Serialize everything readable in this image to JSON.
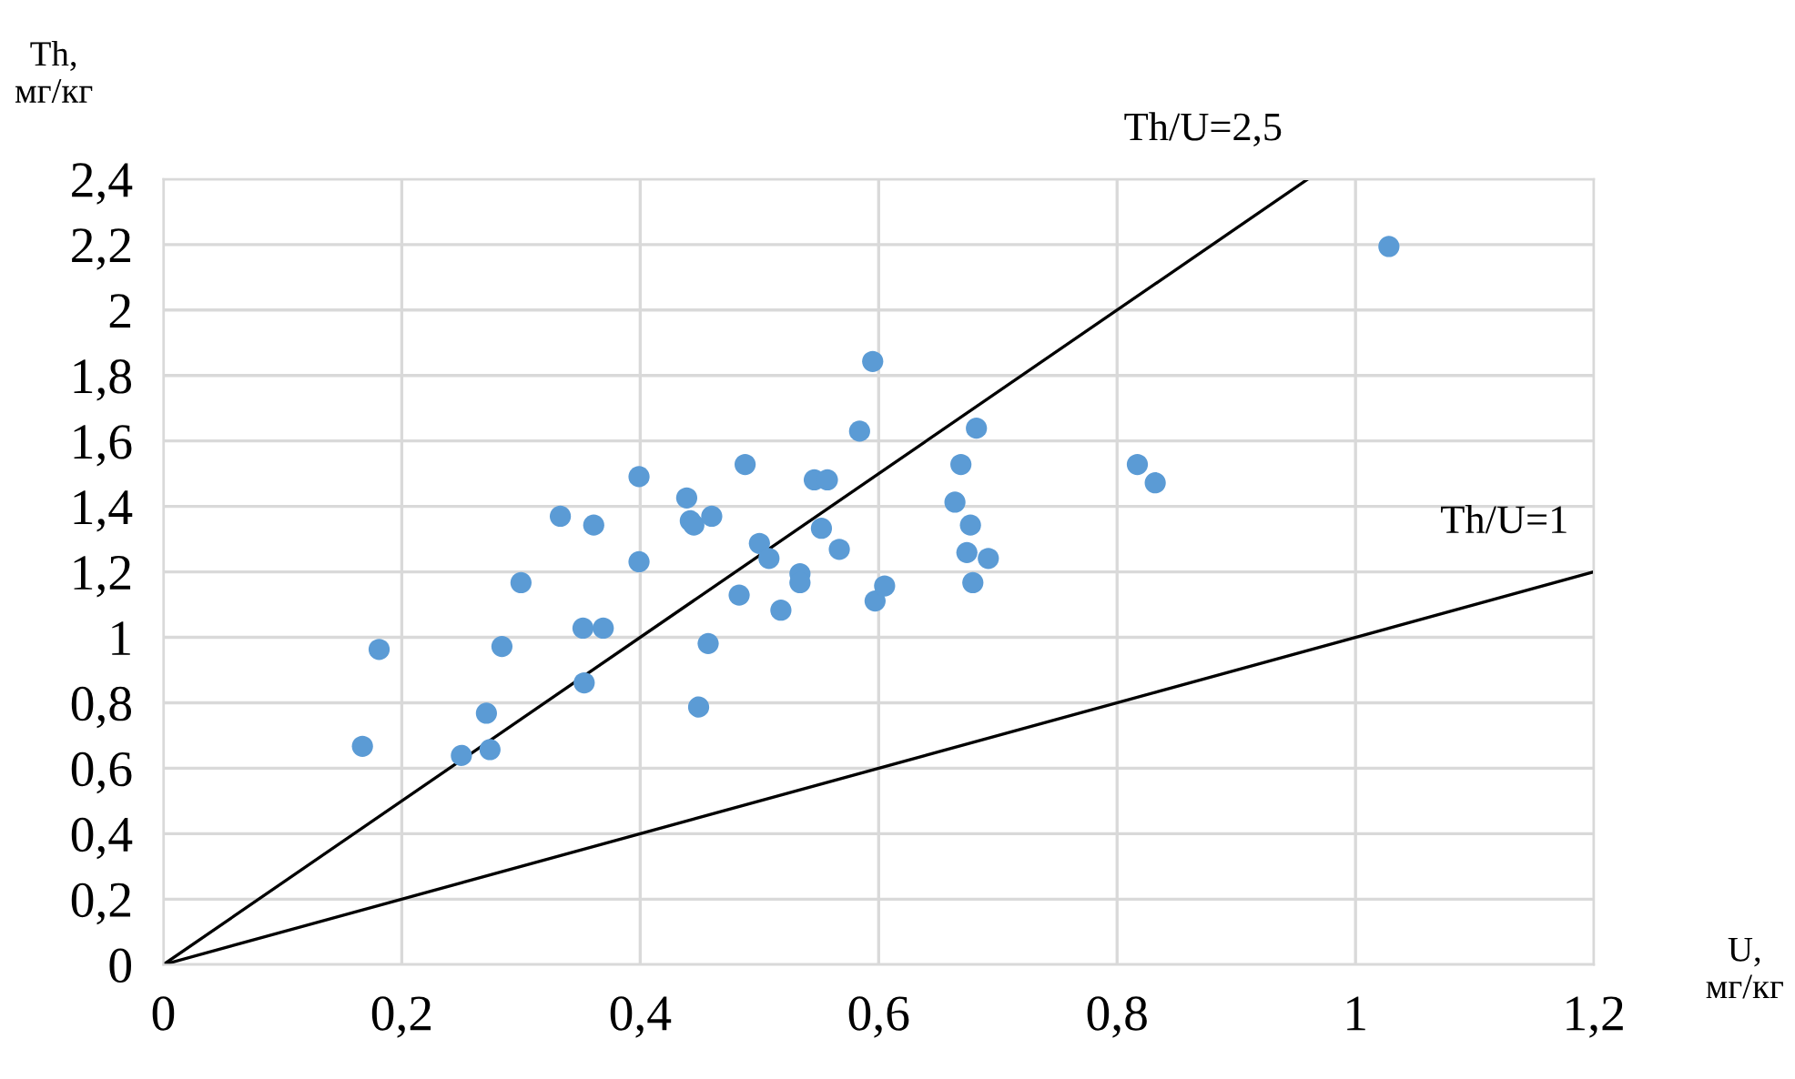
{
  "chart_data": {
    "type": "scatter",
    "xlabel": "U,\nмг/кг",
    "ylabel": "Th,\nмг/кг",
    "series": [
      {
        "color": "#5b9bd5",
        "marker": "circle",
        "x": [
          0.167,
          0.181,
          0.25,
          0.274,
          0.271,
          0.284,
          0.3,
          0.333,
          0.361,
          0.352,
          0.369,
          0.353,
          0.399,
          0.399,
          0.439,
          0.442,
          0.445,
          0.46,
          0.457,
          0.449,
          0.483,
          0.488,
          0.5,
          0.508,
          0.518,
          0.534,
          0.534,
          0.546,
          0.557,
          0.552,
          0.567,
          0.584,
          0.595,
          0.597,
          0.605,
          0.682,
          0.669,
          0.664,
          0.677,
          0.674,
          0.692,
          0.679,
          0.817,
          0.832,
          1.028
        ],
        "values": [
          0.667,
          0.963,
          0.639,
          0.657,
          0.768,
          0.972,
          1.167,
          1.37,
          1.343,
          1.028,
          1.028,
          0.861,
          1.491,
          1.231,
          1.426,
          1.356,
          1.343,
          1.37,
          0.981,
          0.787,
          1.129,
          1.528,
          1.287,
          1.241,
          1.083,
          1.194,
          1.167,
          1.481,
          1.481,
          1.333,
          1.269,
          1.63,
          1.843,
          1.111,
          1.157,
          1.639,
          1.528,
          1.413,
          1.343,
          1.259,
          1.241,
          1.167,
          1.528,
          1.472,
          2.194
        ]
      },
      {
        "type": "line",
        "color": "#000000",
        "line_style": "solid",
        "x": [
          0,
          0.96
        ],
        "values": [
          0,
          2.4
        ]
      },
      {
        "type": "line",
        "color": "#000000",
        "line_style": "solid",
        "x": [
          0,
          1.2
        ],
        "values": [
          0,
          1.2
        ]
      }
    ],
    "annotations": [
      "Th/U=2,5",
      "Th/U=1"
    ],
    "xlim": [
      0,
      1.2
    ],
    "ylim": [
      0,
      2.4
    ],
    "xticks": [
      {
        "value": 0,
        "label": "0"
      },
      {
        "value": 0.2,
        "label": "0,2"
      },
      {
        "value": 0.4,
        "label": "0,4"
      },
      {
        "value": 0.6,
        "label": "0,6"
      },
      {
        "value": 0.8,
        "label": "0,8"
      },
      {
        "value": 1,
        "label": "1"
      },
      {
        "value": 1.2,
        "label": "1,2"
      }
    ],
    "yticks": [
      {
        "value": 0,
        "label": "0"
      },
      {
        "value": 0.2,
        "label": "0,2"
      },
      {
        "value": 0.4,
        "label": "0,4"
      },
      {
        "value": 0.6,
        "label": "0,6"
      },
      {
        "value": 0.8,
        "label": "0,8"
      },
      {
        "value": 1,
        "label": "1"
      },
      {
        "value": 1.2,
        "label": "1,2"
      },
      {
        "value": 1.4,
        "label": "1,4"
      },
      {
        "value": 1.6,
        "label": "1,6"
      },
      {
        "value": 1.8,
        "label": "1,8"
      },
      {
        "value": 2,
        "label": "2"
      },
      {
        "value": 2.2,
        "label": "2,2"
      },
      {
        "value": 2.4,
        "label": "2,4"
      }
    ],
    "grid": true,
    "legend": false
  }
}
